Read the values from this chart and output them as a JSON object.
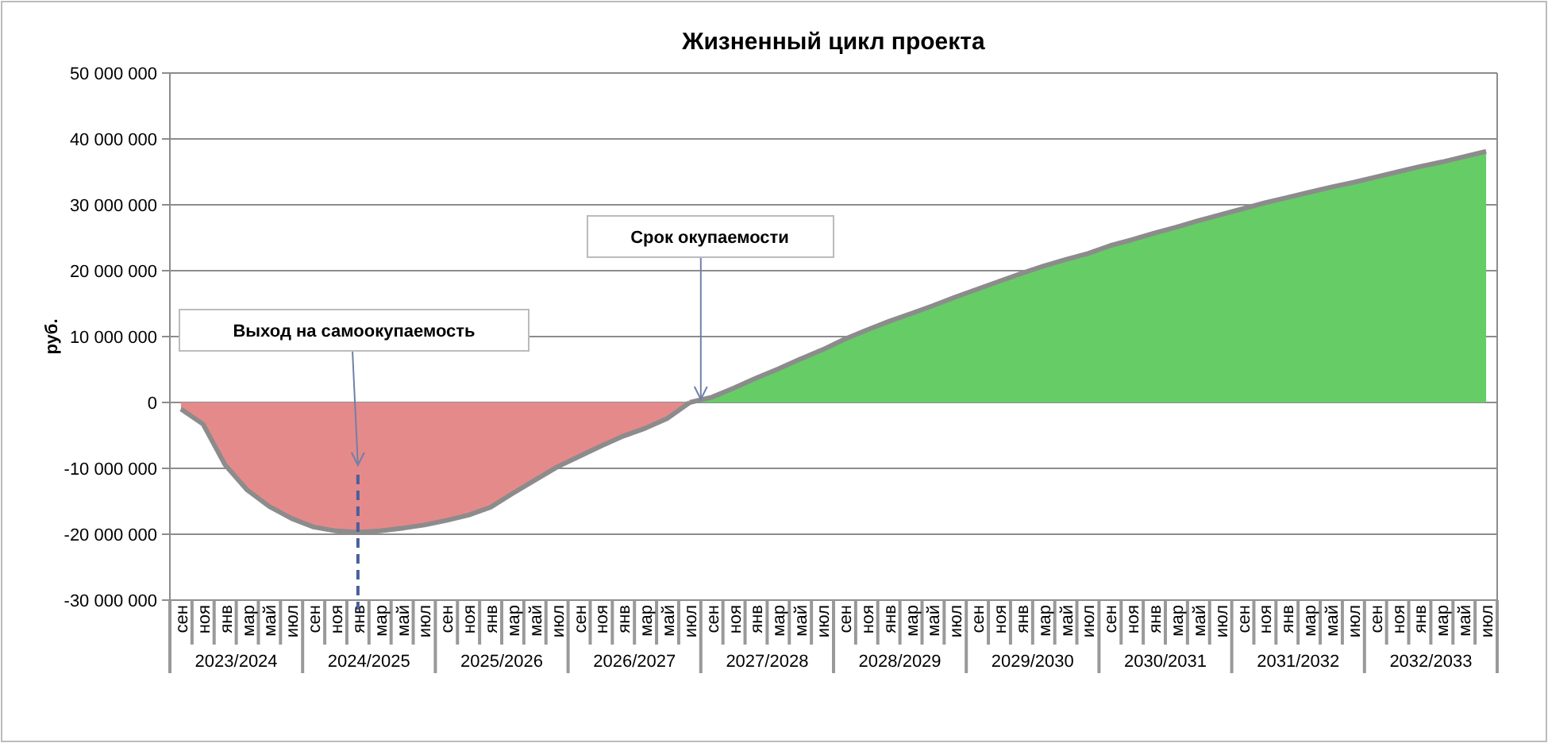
{
  "chart_data": {
    "type": "area",
    "title": "Жизненный цикл проекта",
    "ylabel": "руб.",
    "categories": [
      "сен",
      "ноя",
      "янв",
      "мар",
      "май",
      "июл",
      "сен",
      "ноя",
      "янв",
      "мар",
      "май",
      "июл",
      "сен",
      "ноя",
      "янв",
      "мар",
      "май",
      "июл",
      "сен",
      "ноя",
      "янв",
      "мар",
      "май",
      "июл",
      "сен",
      "ноя",
      "янв",
      "мар",
      "май",
      "июл",
      "сен",
      "ноя",
      "янв",
      "мар",
      "май",
      "июл",
      "сен",
      "ноя",
      "янв",
      "мар",
      "май",
      "июл",
      "сен",
      "ноя",
      "янв",
      "мар",
      "май",
      "июл",
      "сен",
      "ноя",
      "янв",
      "мар",
      "май",
      "июл",
      "сен",
      "ноя",
      "янв",
      "мар",
      "май",
      "июл"
    ],
    "series": [
      {
        "color": "#e58a8a",
        "values": [
          -1000000,
          -3300000,
          -9500000,
          -13300000,
          -15800000,
          -17600000,
          -18900000,
          -19500000,
          -19700000,
          -19500000,
          -19100000,
          -18600000,
          -17900000,
          -17100000,
          -15900000,
          -13800000,
          -11800000,
          -9800000,
          -8200000,
          -6600000,
          -5100000,
          -3900000,
          -2400000,
          0,
          null,
          null,
          null,
          null,
          null,
          null,
          null,
          null,
          null,
          null,
          null,
          null,
          null,
          null,
          null,
          null,
          null,
          null,
          null,
          null,
          null,
          null,
          null,
          null,
          null,
          null,
          null,
          null,
          null,
          null,
          null,
          null,
          null,
          null,
          null,
          null
        ]
      },
      {
        "color": "#66cc66",
        "values": [
          null,
          null,
          null,
          null,
          null,
          null,
          null,
          null,
          null,
          null,
          null,
          null,
          null,
          null,
          null,
          null,
          null,
          null,
          null,
          null,
          null,
          null,
          null,
          0,
          800000,
          2200000,
          3700000,
          5100000,
          6600000,
          8000000,
          9600000,
          11000000,
          12300000,
          13500000,
          14700000,
          16000000,
          17200000,
          18400000,
          19600000,
          20700000,
          21700000,
          22600000,
          23800000,
          24700000,
          25700000,
          26600000,
          27600000,
          28500000,
          29400000,
          30300000,
          31100000,
          31900000,
          32700000,
          33400000,
          34200000,
          35000000,
          35800000,
          36500000,
          37300000,
          38100000
        ]
      }
    ],
    "ylim": [
      -30000000,
      50000000
    ],
    "yticks": [
      {
        "value": -30000000,
        "label": "-30 000 000"
      },
      {
        "value": -20000000,
        "label": "-20 000 000"
      },
      {
        "value": -10000000,
        "label": "-10 000 000"
      },
      0,
      {
        "value": 10000000,
        "label": "10 000 000"
      },
      {
        "value": 20000000,
        "label": "20 000 000"
      },
      {
        "value": 30000000,
        "label": "30 000 000"
      },
      {
        "value": 40000000,
        "label": "40 000 000"
      },
      {
        "value": 50000000,
        "label": "50 000 000"
      }
    ],
    "grid": "y",
    "annotations": [
      "Выход на самоокупаемость",
      {
        "text": "Срок окупаемости",
        "y": 0
      },
      "2023/2024",
      "2024/2025",
      "2025/2026",
      "2026/2027",
      "2027/2028",
      "2028/2029",
      "2029/2030",
      "2030/2031",
      "2031/2032",
      "2032/2033"
    ]
  }
}
